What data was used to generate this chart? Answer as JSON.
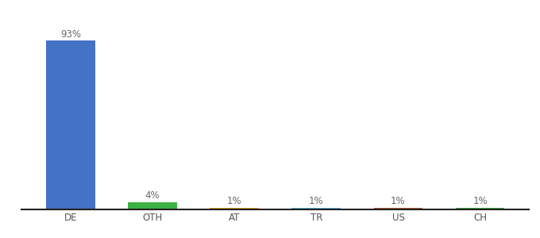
{
  "categories": [
    "DE",
    "OTH",
    "AT",
    "TR",
    "US",
    "CH"
  ],
  "values": [
    93,
    4,
    1,
    1,
    1,
    1
  ],
  "labels": [
    "93%",
    "4%",
    "1%",
    "1%",
    "1%",
    "1%"
  ],
  "bar_colors": [
    "#4472C4",
    "#3CB043",
    "#E8A020",
    "#5BB8D4",
    "#B85C38",
    "#3CB043"
  ],
  "background_color": "#ffffff",
  "ylim": [
    0,
    105
  ],
  "label_fontsize": 8.5,
  "tick_fontsize": 8.5
}
